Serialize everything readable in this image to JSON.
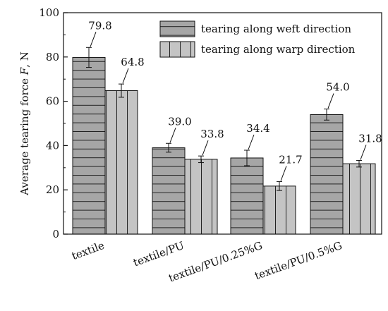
{
  "chart_data": {
    "type": "bar",
    "categories": [
      "textile",
      "textile/PU",
      "textile/PU/0.25%G",
      "textile/PU/0.5%G"
    ],
    "series": [
      {
        "name": "tearing along weft direction",
        "values": [
          79.8,
          39.0,
          34.4,
          54.0
        ],
        "labels": [
          "79.8",
          "39.0",
          "34.4",
          "54.0"
        ],
        "errors": [
          4.5,
          2.0,
          3.5,
          2.5
        ],
        "pattern": "horizontal-stripes",
        "color": "#a6a6a6"
      },
      {
        "name": "tearing along warp direction",
        "values": [
          64.8,
          33.8,
          21.7,
          31.8
        ],
        "labels": [
          "64.8",
          "33.8",
          "21.7",
          "31.8"
        ],
        "errors": [
          3.0,
          1.5,
          2.0,
          1.5
        ],
        "pattern": "vertical-stripes",
        "color": "#c4c4c4"
      }
    ],
    "ylabel_main": "Average tearing force ",
    "ylabel_var": "F",
    "ylabel_unit": ", N",
    "ylim": [
      0,
      100
    ],
    "yticks": [
      "0",
      "20",
      "40",
      "60",
      "80",
      "100"
    ],
    "legend_position": "top-right",
    "grid": false
  }
}
